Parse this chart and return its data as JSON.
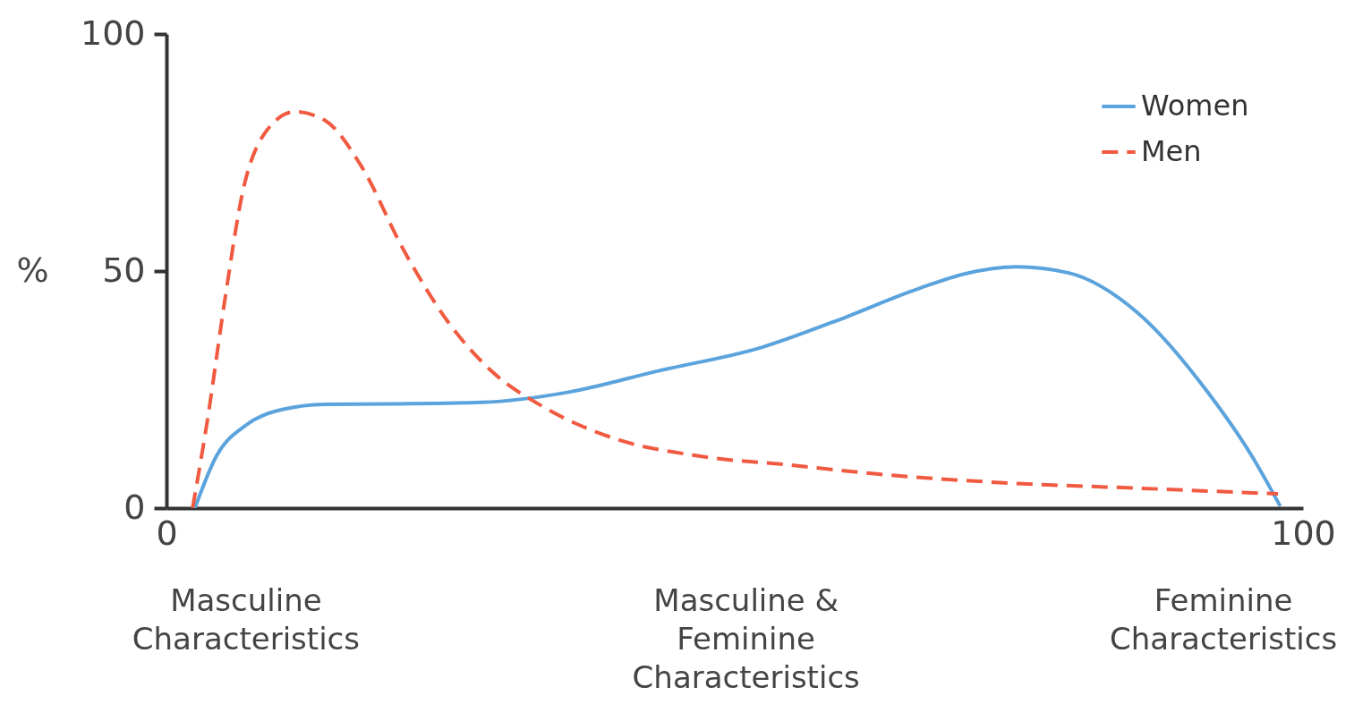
{
  "chart_data": {
    "type": "line",
    "ylabel": "%",
    "xlim": [
      0,
      100
    ],
    "xticks": [
      0,
      100
    ],
    "ylim": [
      0,
      100
    ],
    "yticks": [
      0,
      50,
      100
    ],
    "grid": false,
    "legend": "top right",
    "series": [
      {
        "name": "Women",
        "color": "#5ba3dc",
        "line_style": "solid",
        "x": [
          2.5,
          4.4,
          7,
          10.2,
          14,
          20.2,
          27.7,
          35.5,
          43.2,
          52.5,
          58.6,
          66.3,
          70.2,
          74.8,
          79.4,
          85.5,
          91.7,
          95.5,
          98
        ],
        "values": [
          0,
          11,
          17.5,
          20.8,
          21.9,
          22,
          22.3,
          24.5,
          28.9,
          34,
          39.2,
          46.4,
          49.4,
          50.9,
          49.6,
          41.1,
          24.2,
          11,
          0.4
        ]
      },
      {
        "name": "Men",
        "color": "#f05a40",
        "line_style": "dashed",
        "x": [
          2.3,
          3.6,
          5.2,
          6.7,
          8.6,
          11.3,
          14,
          17.1,
          20.9,
          24.8,
          28.6,
          33.2,
          39.4,
          47.1,
          54.8,
          62.5,
          74,
          85.5,
          97.8
        ],
        "values": [
          0,
          18.5,
          44.9,
          66.6,
          78.9,
          83.6,
          81.7,
          72.3,
          54.3,
          39.2,
          28.9,
          21.3,
          14.7,
          10.9,
          9.1,
          7.2,
          5.3,
          4.2,
          3
        ]
      }
    ],
    "annotations": [
      "Masculine Characteristics",
      "Masculine & Feminine Characteristics",
      "Feminine Characteristics"
    ]
  }
}
